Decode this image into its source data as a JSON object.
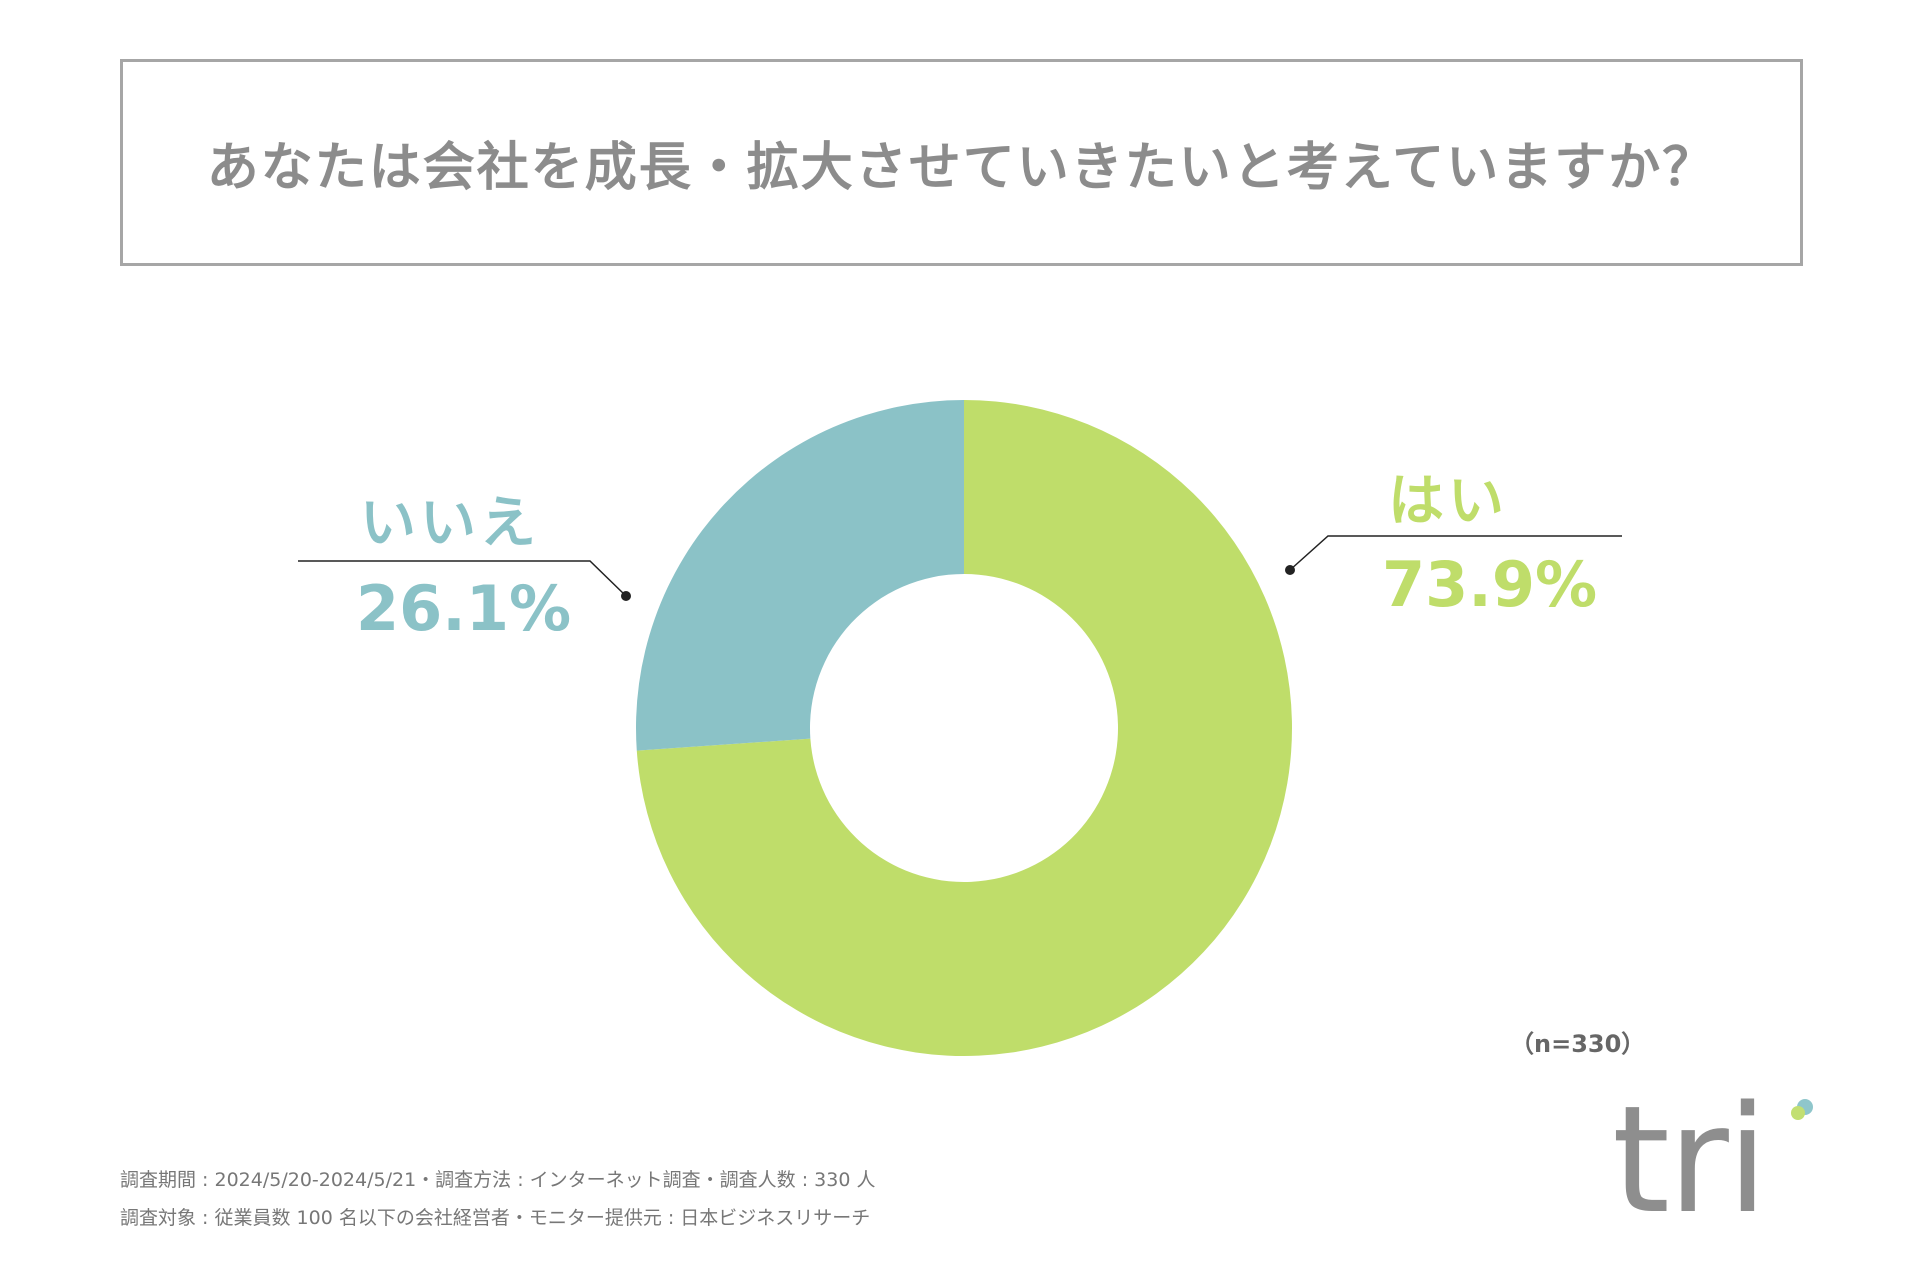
{
  "title": "あなたは会社を成長・拡大させていきたいと考えていますか？",
  "chart_data": {
    "type": "pie",
    "variant": "donut",
    "title": "あなたは会社を成長・拡大させていきたいと考えていますか？",
    "slices": [
      {
        "label": "はい",
        "value": 73.9,
        "value_label": "73.9%",
        "color": "#bfdd6a"
      },
      {
        "label": "いいえ",
        "value": 26.1,
        "value_label": "26.1%",
        "color": "#8bc2c7"
      }
    ],
    "start_angle": "top",
    "direction": "clockwise",
    "sample_size": "（n=330）"
  },
  "footer": {
    "line1": "調査期間 : 2024/5/20-2024/5/21・調査方法 : インターネット調査・調査人数 : 330 人",
    "line2": "調査対象 : 従業員数 100 名以下の会社経営者・モニター提供元 : 日本ビジネスリサーチ"
  },
  "logo": {
    "text": "tri",
    "accent_colors": [
      "#8fc6cb",
      "#c2df72"
    ]
  },
  "colors": {
    "title_border": "#a6a6a6",
    "title_text": "#8c8c8c",
    "leader_line": "#222222"
  }
}
